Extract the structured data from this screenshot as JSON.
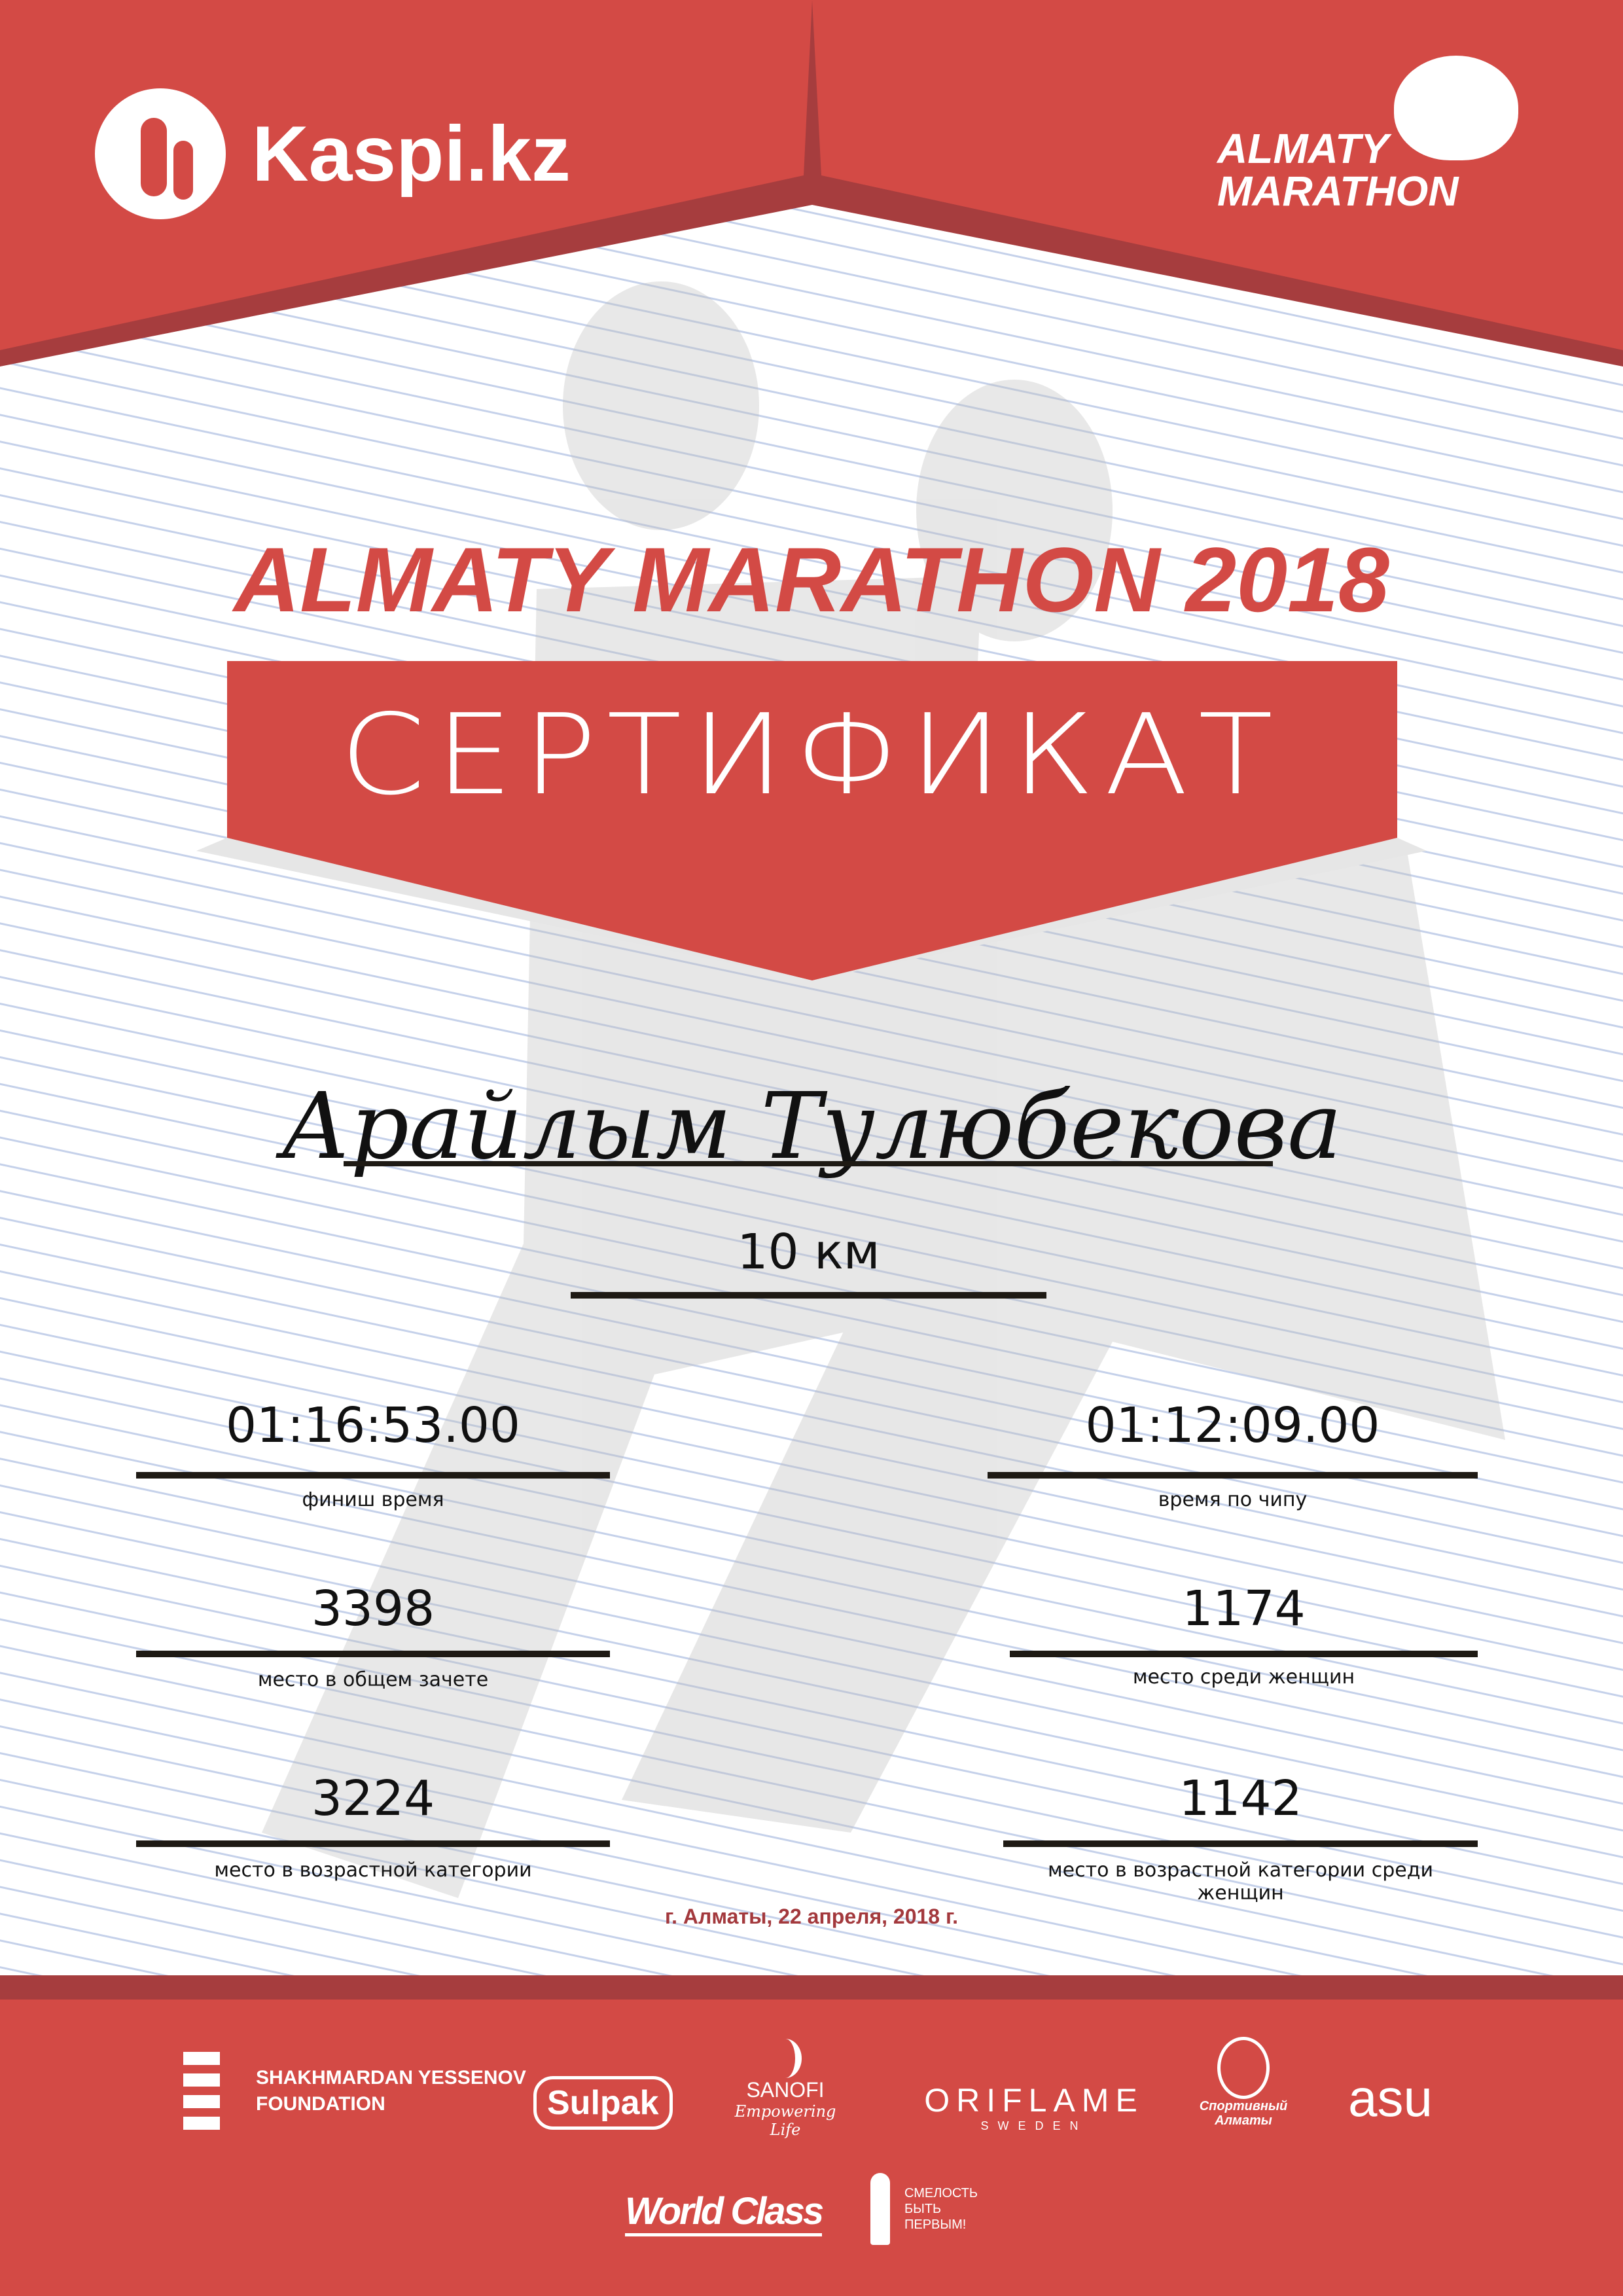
{
  "header": {
    "sponsor_logo": "Kaspi.kz",
    "event_logo_line1": "ALMATY",
    "event_logo_line2": "MARATHON"
  },
  "title": "ALMATY MARATHON 2018",
  "ribbon_text": "СЕРТИФИКАТ",
  "participant_name": "Арайлым Тулюбекова",
  "distance": "10 км",
  "results": [
    {
      "value": "01:16:53.00",
      "label": "финиш время"
    },
    {
      "value": "01:12:09.00",
      "label": "время по чипу"
    },
    {
      "value": "3398",
      "label": "место в общем зачете"
    },
    {
      "value": "1174",
      "label": "место среди женщин"
    },
    {
      "value": "3224",
      "label": "место в возрастной категории"
    },
    {
      "value": "1142",
      "label": "место в возрастной категории среди женщин"
    }
  ],
  "date_place": "г. Алматы, 22 апреля, 2018 г.",
  "sponsors": {
    "yessenov_line1": "SHAKHMARDAN YESSENOV",
    "yessenov_line2": "FOUNDATION",
    "sulpak": "Sulpak",
    "sanofi": "SANOFI",
    "sanofi_tagline": "Empowering Life",
    "oriflame": "ORIFLAME",
    "oriflame_sub": "SWEDEN",
    "sport_almaty": "Спортивный Алматы",
    "asu": "asu",
    "worldclass": "World Class",
    "smelost_line1": "СМЕЛОСТЬ",
    "smelost_line2": "БЫТЬ",
    "smelost_line3": "ПЕРВЫМ!"
  },
  "colors": {
    "red": "#d34a45",
    "dark_red": "#a63d3e",
    "date_text": "#a3393d",
    "lines": "#c5d1ea"
  }
}
